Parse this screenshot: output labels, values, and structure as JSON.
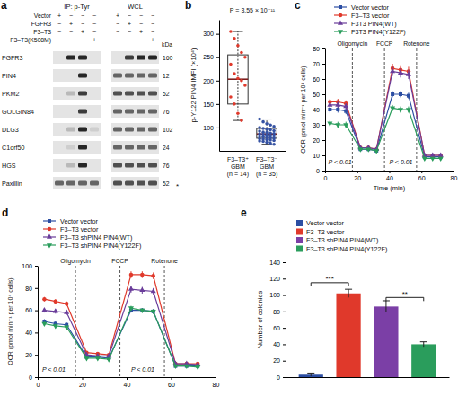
{
  "chart_data": [
    {
      "type": "blot",
      "panel": "a",
      "headers": [
        "IP: p-Tyr",
        "WCL"
      ],
      "conditions": [
        "Vector",
        "FGFR3",
        "F3–T3",
        "F3–T3(K508M)"
      ],
      "signs": [
        [
          "+",
          "−",
          "−",
          "−",
          "+",
          "−",
          "−",
          "−"
        ],
        [
          "−",
          "+",
          "−",
          "−",
          "−",
          "+",
          "−",
          "−"
        ],
        [
          "−",
          "−",
          "+",
          "−",
          "−",
          "−",
          "+",
          "−"
        ],
        [
          "−",
          "−",
          "−",
          "+",
          "−",
          "−",
          "−",
          "+"
        ]
      ],
      "proteins": [
        "FGFR3",
        "PIN4",
        "PKM2",
        "GOLGIN84",
        "DLG3",
        "C1orf50",
        "HGS",
        "Paxillin"
      ],
      "kda_label": "kDa",
      "kda": [
        160,
        12,
        52,
        76,
        102,
        24,
        76,
        52
      ],
      "bands": [
        [
          0,
          0.9,
          0.9,
          0,
          0,
          0.8,
          0.9,
          0.9
        ],
        [
          0,
          0,
          0.9,
          0,
          0.6,
          0.6,
          0.6,
          0.6
        ],
        [
          0,
          0.2,
          0.8,
          0,
          0.7,
          0.7,
          0.7,
          0.7
        ],
        [
          0,
          0,
          0.8,
          0,
          0.6,
          0.6,
          0.6,
          0.6
        ],
        [
          0,
          0.2,
          0.9,
          0.1,
          0.6,
          0.6,
          0.6,
          0.6
        ],
        [
          0,
          0.1,
          0.9,
          0,
          0.6,
          0.6,
          0.6,
          0.6
        ],
        [
          0,
          0.2,
          0.9,
          0,
          0.7,
          0.7,
          0.7,
          0.7
        ],
        [
          0.6,
          0.6,
          0.6,
          0.6,
          0.7,
          0.7,
          0.7,
          0.7
        ]
      ],
      "asterisk": {
        "row": 7,
        "text": "*"
      }
    },
    {
      "type": "box",
      "panel": "b",
      "title": "P = 3.55 × 10⁻¹¹",
      "y_label": "p-Y122 PIN4 IMFI (×10⁴)",
      "categories": [
        "F3–T3⁺\nGBM\n(n = 14)",
        "F3–T3⁻\nGBM\n(n = 35)"
      ],
      "boxes": [
        {
          "min": 115,
          "q1": 150,
          "median": 203,
          "q3": 255,
          "max": 305,
          "color": "#e0392b",
          "points": [
            305,
            290,
            275,
            260,
            250,
            235,
            215,
            205,
            200,
            190,
            165,
            150,
            130,
            115
          ]
        },
        {
          "min": 64,
          "q1": 77,
          "median": 86,
          "q3": 98,
          "max": 118,
          "color": "#3552a3",
          "points": [
            118,
            112,
            108,
            105,
            102,
            100,
            98,
            96,
            95,
            93,
            92,
            90,
            89,
            88,
            87,
            86,
            85,
            84,
            83,
            82,
            81,
            80,
            79,
            78,
            77,
            76,
            75,
            74,
            73,
            72,
            71,
            70,
            68,
            66,
            64
          ]
        }
      ],
      "ylim": [
        50,
        330
      ],
      "yticks": [
        100,
        150,
        200,
        250,
        300
      ]
    },
    {
      "type": "line",
      "panel": "c",
      "y_label": "OCR (pmol min⁻¹ per 10⁴ cells)",
      "x_label": "Time (min)",
      "x": [
        3,
        8,
        13,
        22,
        27,
        32,
        42,
        47,
        52,
        62,
        67,
        72
      ],
      "series": [
        {
          "name": "Vector vector",
          "color": "#2c4ea3",
          "marker": "square",
          "values": [
            40,
            40,
            39,
            14,
            14,
            13,
            50,
            50,
            49,
            9,
            9,
            9
          ],
          "errors": [
            2,
            2,
            2,
            1,
            1,
            1,
            2,
            2,
            2,
            1,
            1,
            1
          ]
        },
        {
          "name": "F3–T3 vector",
          "color": "#e0392b",
          "marker": "circle",
          "values": [
            45,
            45,
            44,
            15,
            15,
            14,
            67,
            66,
            65,
            10,
            10,
            10
          ],
          "errors": [
            2,
            2,
            2,
            1,
            1,
            1,
            3,
            3,
            3,
            1,
            1,
            1
          ]
        },
        {
          "name": "F3T3 PIN4(WT)",
          "color": "#6a3d9a",
          "marker": "triangle-up",
          "values": [
            43,
            43,
            42,
            15,
            15,
            14,
            65,
            64,
            63,
            10,
            10,
            10
          ],
          "errors": [
            2,
            2,
            2,
            1,
            1,
            1,
            3,
            3,
            3,
            1,
            1,
            1
          ]
        },
        {
          "name": "F3T3 PIN4(Y122F)",
          "color": "#2a9d5c",
          "marker": "triangle-down",
          "values": [
            31,
            30,
            30,
            14,
            14,
            13,
            41,
            40,
            40,
            8,
            8,
            8
          ],
          "errors": [
            2,
            2,
            2,
            1,
            1,
            1,
            2,
            2,
            2,
            1,
            1,
            1
          ]
        }
      ],
      "treatments": [
        {
          "text": "Oligomycin",
          "x": 17
        },
        {
          "text": "FCCP",
          "x": 37
        },
        {
          "text": "Rotenone",
          "x": 57
        }
      ],
      "annotations": [
        {
          "text": "P < 0.01",
          "x": 2,
          "y": 4
        },
        {
          "text": "P < 0.01",
          "x": 40,
          "y": 4
        }
      ],
      "xlim": [
        0,
        80
      ],
      "xticks": [
        0,
        20,
        40,
        60,
        80
      ],
      "ylim": [
        0,
        80
      ],
      "yticks": [
        0,
        10,
        20,
        30,
        40,
        50,
        60,
        70,
        80
      ],
      "legend": "top"
    },
    {
      "type": "line",
      "panel": "d",
      "y_label": "OCR (pmol min⁻¹ per 10⁴ cells)",
      "x": [
        3,
        8,
        13,
        22,
        27,
        32,
        42,
        47,
        52,
        62,
        67,
        72
      ],
      "series": [
        {
          "name": "Vector vector",
          "color": "#2c4ea3",
          "marker": "square",
          "values": [
            50,
            48,
            47,
            18,
            18,
            17,
            60,
            60,
            59,
            10,
            10,
            10
          ],
          "errors": [
            2,
            2,
            2,
            1,
            1,
            1,
            2,
            2,
            2,
            1,
            1,
            1
          ]
        },
        {
          "name": "F3–T3 vector",
          "color": "#e0392b",
          "marker": "circle",
          "values": [
            70,
            68,
            66,
            22,
            21,
            20,
            92,
            92,
            91,
            12,
            12,
            12
          ],
          "errors": [
            2,
            2,
            2,
            1,
            1,
            1,
            3,
            3,
            3,
            1,
            1,
            1
          ]
        },
        {
          "name": "F3–T3 shPIN4 PIN4(WT)",
          "color": "#6a3d9a",
          "marker": "triangle-up",
          "values": [
            60,
            59,
            58,
            20,
            19,
            19,
            79,
            78,
            77,
            12,
            12,
            11
          ],
          "errors": [
            2,
            2,
            2,
            1,
            1,
            1,
            3,
            3,
            3,
            1,
            1,
            1
          ]
        },
        {
          "name": "F3–T3 shPIN4 PIN4(Y122F)",
          "color": "#2a9d5c",
          "marker": "triangle-down",
          "values": [
            48,
            46,
            45,
            17,
            17,
            16,
            62,
            60,
            59,
            10,
            10,
            9
          ],
          "errors": [
            2,
            2,
            2,
            1,
            1,
            1,
            2,
            2,
            2,
            1,
            1,
            1
          ]
        }
      ],
      "treatments": [
        {
          "text": "Oligomycin",
          "x": 17
        },
        {
          "text": "FCCP",
          "x": 37
        },
        {
          "text": "Rotenone",
          "x": 57
        }
      ],
      "annotations": [
        {
          "text": "P < 0.01",
          "x": 2,
          "y": 5
        },
        {
          "text": "P < 0.01",
          "x": 42,
          "y": 5
        }
      ],
      "xlim": [
        0,
        80
      ],
      "xticks": [
        0,
        20,
        40,
        60,
        80
      ],
      "ylim": [
        0,
        100
      ],
      "yticks": [
        0,
        20,
        40,
        60,
        80,
        100
      ],
      "legend": "top"
    },
    {
      "type": "bar",
      "panel": "e",
      "y_label": "Number of colonies",
      "categories": [
        "Vector vector",
        "F3–T3 vector",
        "F3–T3 shPIN4 PIN4(WT)",
        "F3–T3 shPIN4 PIN4(Y122F)"
      ],
      "values": [
        3,
        102,
        86,
        40
      ],
      "errors": [
        2,
        5,
        7,
        3
      ],
      "colors": [
        "#2c4ea3",
        "#e0392b",
        "#7b3fa6",
        "#2a9d5c"
      ],
      "annotations": [
        {
          "text": "***",
          "from": 0,
          "to": 1,
          "y": 115
        },
        {
          "text": "**",
          "from": 2,
          "to": 3,
          "y": 97
        }
      ],
      "ylim": [
        0,
        140
      ],
      "yticks": [
        0,
        20,
        40,
        60,
        80,
        100,
        120,
        140
      ],
      "legend": "top-left",
      "tick_labels": "y"
    }
  ]
}
